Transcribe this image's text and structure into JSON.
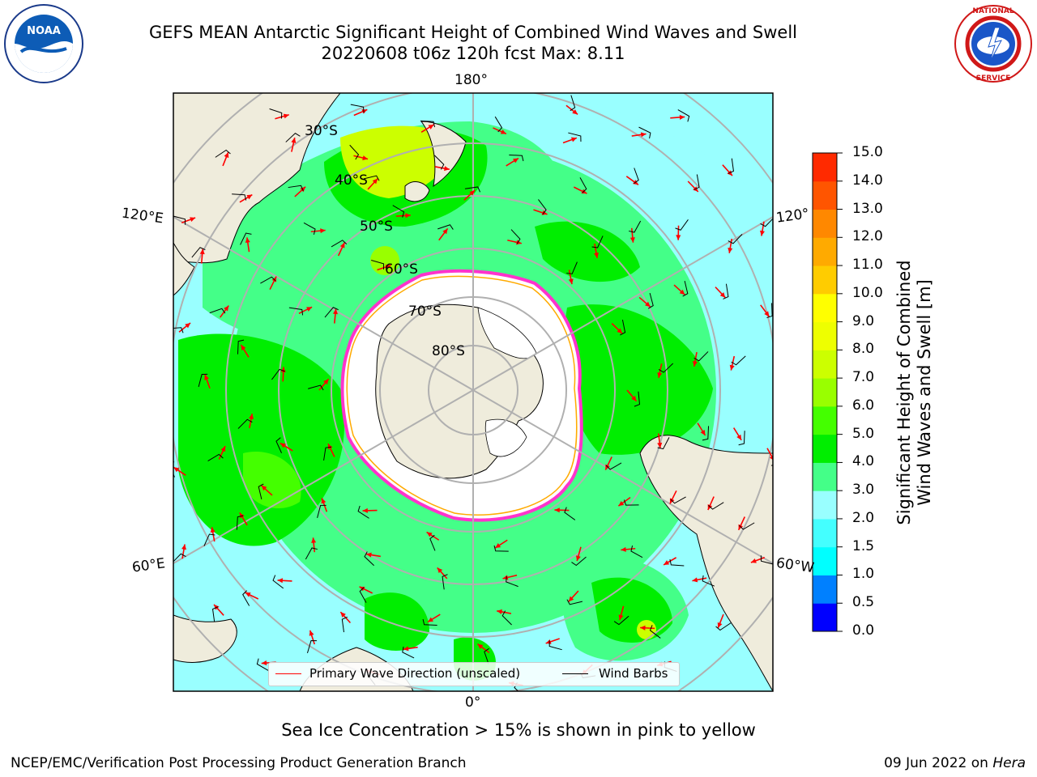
{
  "title": {
    "line1": "GEFS MEAN Antarctic Significant Height of Combined Wind Waves and Swell",
    "line2": "20220608 t06z 120h fcst   Max: 8.11"
  },
  "logos": {
    "left": "NOAA",
    "right_text": "NATIONAL WEATHER SERVICE"
  },
  "map": {
    "projection": "south-polar-stereographic",
    "longitude_labels": {
      "top": "180°",
      "bottom": "0°",
      "left_upper": "120°E",
      "left_lower": "60°E",
      "right_upper": "120°",
      "right_lower": "60°W"
    },
    "latitude_labels": [
      "30°S",
      "40°S",
      "50°S",
      "60°S",
      "70°S",
      "80°S"
    ],
    "colors": {
      "land": "#efecdc",
      "ice_shelf": "#ffffff",
      "sea_ice_edge": "#ff33cc",
      "grid": "#b0b0b0"
    }
  },
  "legend": {
    "wave_direction": "Primary Wave Direction (unscaled)",
    "wind_barbs": "Wind Barbs",
    "wave_color": "#ff0000",
    "barb_color": "#000000"
  },
  "colorbar": {
    "label_line1": "Significant Height of Combined",
    "label_line2": "Wind Waves and Swell [m]",
    "ticks": [
      "15.0",
      "14.0",
      "13.0",
      "12.0",
      "11.0",
      "10.0",
      "9.0",
      "8.0",
      "7.0",
      "6.0",
      "5.0",
      "4.0",
      "3.0",
      "2.0",
      "1.5",
      "1.0",
      "0.5",
      "0.0"
    ],
    "colors": [
      "#0000ff",
      "#0080ff",
      "#00ffff",
      "#44ffff",
      "#99ffff",
      "#44ff88",
      "#00ee00",
      "#44ff00",
      "#99ff00",
      "#ccff00",
      "#eeff00",
      "#ffff00",
      "#ffcc00",
      "#ffaa00",
      "#ff8800",
      "#ff5500",
      "#ff2a00"
    ]
  },
  "footnote": "Sea Ice Concentration > 15% is shown in pink to yellow",
  "credit_left": "NCEP/EMC/Verification Post Processing Product Generation Branch",
  "credit_right": {
    "date": "09 Jun 2022 on",
    "host": "Hera"
  }
}
